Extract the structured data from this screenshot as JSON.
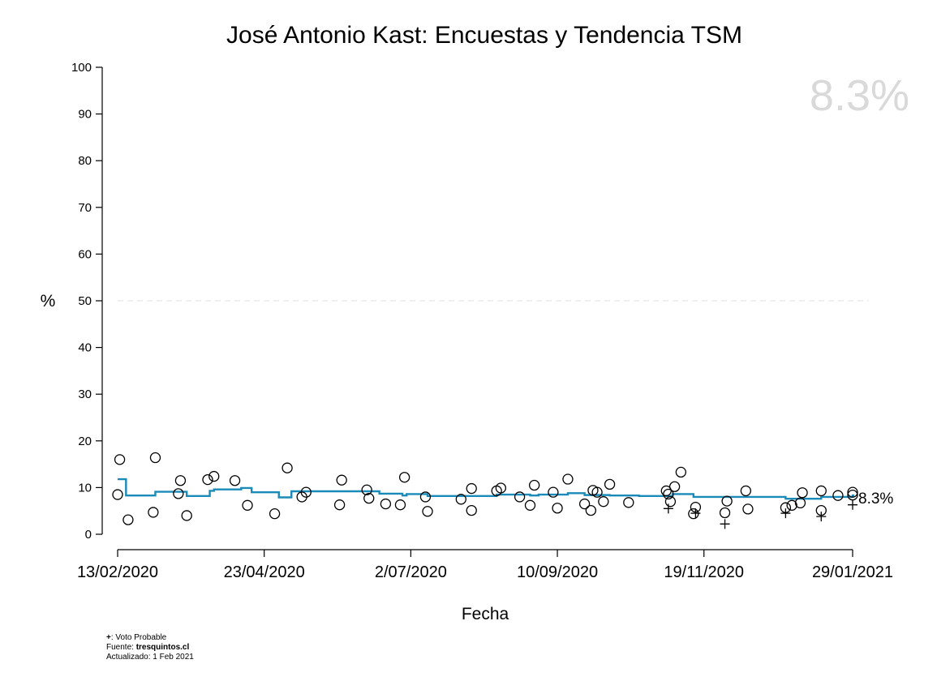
{
  "chart_data": {
    "type": "scatter",
    "title": "José Antonio Kast: Encuestas y Tendencia TSM",
    "xlabel": "Fecha",
    "ylabel": "%",
    "x_range": [
      "2020-02-13",
      "2021-01-29"
    ],
    "x_ticks": [
      "13/02/2020",
      "23/04/2020",
      "2/07/2020",
      "10/09/2020",
      "19/11/2020",
      "29/01/2021"
    ],
    "ylim": [
      0,
      100
    ],
    "y_ticks": [
      "0",
      "10",
      "20",
      "30",
      "40",
      "50",
      "60",
      "70",
      "80",
      "90",
      "100"
    ],
    "reference_line": {
      "y": 50,
      "style": "dashed",
      "color": "#e8e8e8"
    },
    "current_value_label": "8.3%",
    "end_label": "8.3%",
    "trend_color": "#1a8bb8",
    "series": [
      {
        "marker": "circle",
        "points": [
          [
            "2020-02-13",
            8.5
          ],
          [
            "2020-02-14",
            16.0
          ],
          [
            "2020-02-18",
            3.1
          ],
          [
            "2020-03-01",
            4.7
          ],
          [
            "2020-03-02",
            16.4
          ],
          [
            "2020-03-13",
            8.7
          ],
          [
            "2020-03-14",
            11.5
          ],
          [
            "2020-03-17",
            4.0
          ],
          [
            "2020-03-27",
            11.7
          ],
          [
            "2020-03-30",
            12.4
          ],
          [
            "2020-04-09",
            11.5
          ],
          [
            "2020-04-15",
            6.2
          ],
          [
            "2020-04-28",
            4.4
          ],
          [
            "2020-05-04",
            14.2
          ],
          [
            "2020-05-11",
            8.0
          ],
          [
            "2020-05-13",
            9.0
          ],
          [
            "2020-05-29",
            6.3
          ],
          [
            "2020-05-30",
            11.6
          ],
          [
            "2020-06-11",
            9.5
          ],
          [
            "2020-06-12",
            7.7
          ],
          [
            "2020-06-20",
            6.5
          ],
          [
            "2020-06-27",
            6.3
          ],
          [
            "2020-06-29",
            12.2
          ],
          [
            "2020-07-09",
            8.0
          ],
          [
            "2020-07-10",
            4.9
          ],
          [
            "2020-07-26",
            7.5
          ],
          [
            "2020-07-31",
            5.1
          ],
          [
            "2020-07-31",
            9.8
          ],
          [
            "2020-08-12",
            9.3
          ],
          [
            "2020-08-14",
            9.9
          ],
          [
            "2020-08-23",
            8.0
          ],
          [
            "2020-08-28",
            6.2
          ],
          [
            "2020-08-30",
            10.5
          ],
          [
            "2020-09-08",
            9.0
          ],
          [
            "2020-09-10",
            5.6
          ],
          [
            "2020-09-15",
            11.8
          ],
          [
            "2020-09-23",
            6.5
          ],
          [
            "2020-09-26",
            5.1
          ],
          [
            "2020-09-27",
            9.4
          ],
          [
            "2020-09-29",
            9.0
          ],
          [
            "2020-10-02",
            7.0
          ],
          [
            "2020-10-05",
            10.7
          ],
          [
            "2020-10-14",
            6.8
          ],
          [
            "2020-11-01",
            9.3
          ],
          [
            "2020-11-02",
            8.6
          ],
          [
            "2020-11-03",
            7.0
          ],
          [
            "2020-11-05",
            10.2
          ],
          [
            "2020-11-08",
            13.3
          ],
          [
            "2020-11-14",
            4.4
          ],
          [
            "2020-11-15",
            5.8
          ],
          [
            "2020-11-29",
            4.6
          ],
          [
            "2020-11-30",
            7.1
          ],
          [
            "2020-12-09",
            9.3
          ],
          [
            "2020-12-10",
            5.4
          ],
          [
            "2020-12-28",
            5.7
          ],
          [
            "2020-12-31",
            6.2
          ],
          [
            "2021-01-04",
            6.7
          ],
          [
            "2021-01-05",
            8.9
          ],
          [
            "2021-01-14",
            9.3
          ],
          [
            "2021-01-14",
            5.1
          ],
          [
            "2021-01-22",
            8.3
          ],
          [
            "2021-01-29",
            9.0
          ],
          [
            "2021-01-29",
            8.4
          ]
        ]
      },
      {
        "name": "Voto Probable",
        "marker": "plus",
        "points": [
          [
            "2020-11-02",
            5.5
          ],
          [
            "2020-11-15",
            4.5
          ],
          [
            "2020-11-29",
            2.2
          ],
          [
            "2020-12-28",
            4.5
          ],
          [
            "2021-01-14",
            3.8
          ],
          [
            "2021-01-29",
            6.3
          ]
        ]
      }
    ],
    "trend": {
      "style": "step",
      "points": [
        [
          "2020-02-13",
          11.8
        ],
        [
          "2020-02-17",
          8.3
        ],
        [
          "2020-03-02",
          9.1
        ],
        [
          "2020-03-17",
          8.2
        ],
        [
          "2020-03-28",
          9.3
        ],
        [
          "2020-03-30",
          9.6
        ],
        [
          "2020-04-12",
          9.9
        ],
        [
          "2020-04-17",
          9.0
        ],
        [
          "2020-04-30",
          7.9
        ],
        [
          "2020-05-06",
          9.2
        ],
        [
          "2020-06-17",
          8.7
        ],
        [
          "2020-06-28",
          8.3
        ],
        [
          "2020-06-30",
          8.6
        ],
        [
          "2020-07-10",
          8.2
        ],
        [
          "2020-08-12",
          8.5
        ],
        [
          "2020-08-28",
          8.3
        ],
        [
          "2020-09-01",
          8.5
        ],
        [
          "2020-09-15",
          8.8
        ],
        [
          "2020-09-23",
          8.4
        ],
        [
          "2020-10-05",
          8.3
        ],
        [
          "2020-10-19",
          8.2
        ],
        [
          "2020-11-04",
          8.6
        ],
        [
          "2020-11-14",
          8.0
        ],
        [
          "2020-12-28",
          7.6
        ],
        [
          "2021-01-14",
          8.0
        ],
        [
          "2021-01-29",
          8.3
        ]
      ]
    }
  },
  "footnote": {
    "legend_symbol": "+",
    "legend_text": ": Voto Probable",
    "source_prefix": "Fuente: ",
    "source_name": "tresquintos.cl",
    "updated": "Actualizado: 1 Feb 2021"
  }
}
